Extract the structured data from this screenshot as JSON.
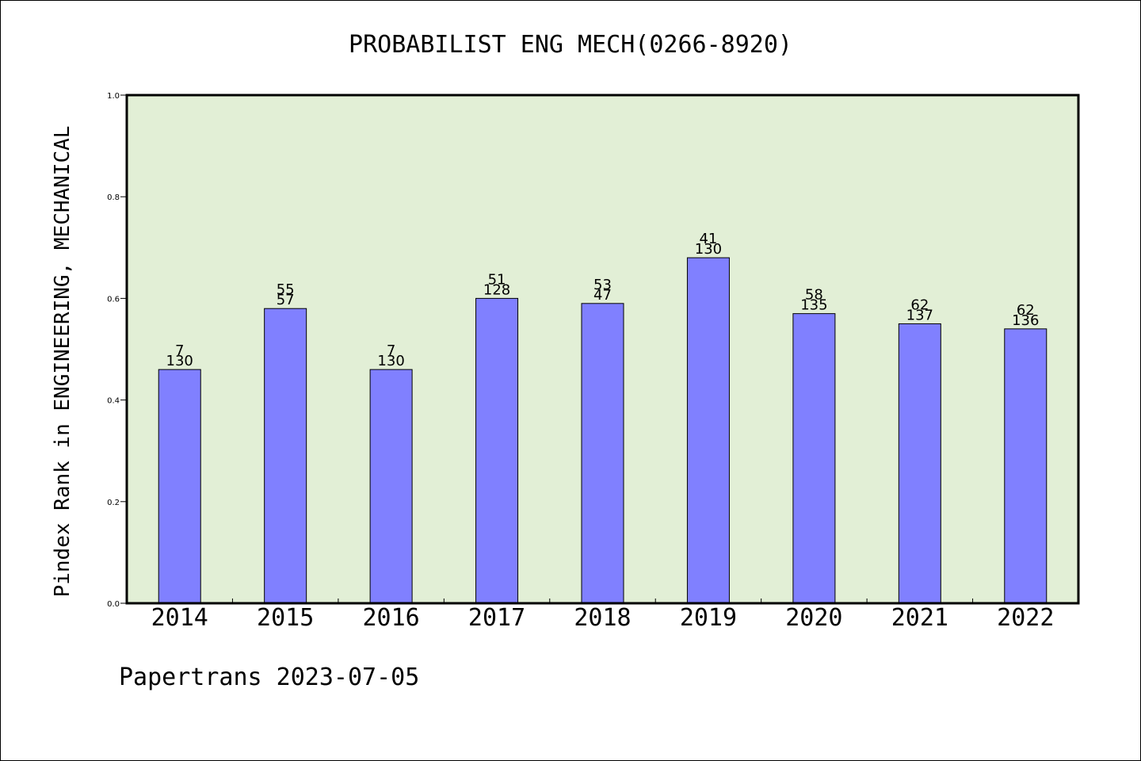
{
  "chart_data": {
    "type": "bar",
    "title": "PROBABILIST ENG MECH(0266-8920)",
    "ylabel": "Pindex Rank in ENGINEERING, MECHANICAL",
    "xlabel": "",
    "ylim": [
      0,
      1.0
    ],
    "yticks": [
      "0.0",
      "0.2",
      "0.4",
      "0.6",
      "0.8",
      "1.0"
    ],
    "categories": [
      "2014",
      "2015",
      "2016",
      "2017",
      "2018",
      "2019",
      "2020",
      "2021",
      "2022"
    ],
    "values": [
      0.46,
      0.58,
      0.46,
      0.6,
      0.59,
      0.68,
      0.57,
      0.55,
      0.54
    ],
    "label_top": [
      "7",
      "55",
      "7",
      "51",
      "53",
      "41",
      "58",
      "62",
      "62"
    ],
    "label_bottom": [
      "130",
      "57",
      "130",
      "128",
      "47",
      "130",
      "135",
      "137",
      "136"
    ],
    "grid": false,
    "bar_color": "#8080ff",
    "plot_background": "#e2efd6",
    "footer": "Papertrans 2023-07-05"
  }
}
